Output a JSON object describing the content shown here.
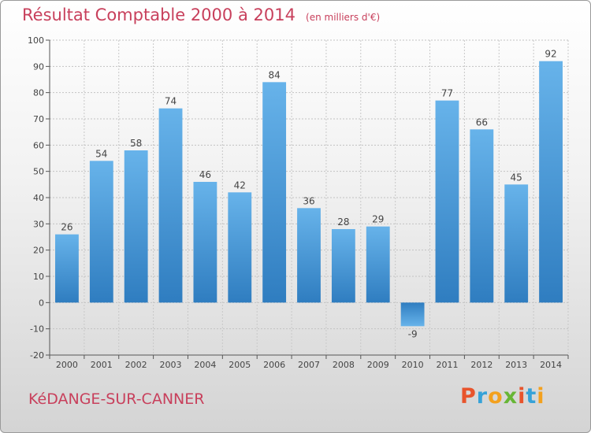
{
  "title": "Résultat Comptable 2000 à 2014",
  "subtitle": "(en milliers d'€)",
  "commune": "KéDANGE-SUR-CANNER",
  "logo": {
    "letters": [
      "P",
      "r",
      "o",
      "x",
      "i",
      "t",
      "i"
    ],
    "colors": [
      "#e8542c",
      "#36a2d8",
      "#f3a11e",
      "#67b635",
      "#e8542c",
      "#36a2d8",
      "#f3a11e"
    ]
  },
  "colors": {
    "bar": "#3f8fd0",
    "bar_light": "#67b3ea",
    "text": "#444444",
    "grid": "#bdbdbd",
    "accent": "#c8405c"
  },
  "chart_data": {
    "type": "bar",
    "title": "Résultat Comptable 2000 à 2014",
    "xlabel": "",
    "ylabel": "",
    "ylim": [
      -20,
      100
    ],
    "yticks": [
      -20,
      -10,
      0,
      10,
      20,
      30,
      40,
      50,
      60,
      70,
      80,
      90,
      100
    ],
    "grid": true,
    "categories": [
      "2000",
      "2001",
      "2002",
      "2003",
      "2004",
      "2005",
      "2006",
      "2007",
      "2008",
      "2009",
      "2010",
      "2011",
      "2012",
      "2013",
      "2014"
    ],
    "values": [
      26,
      54,
      58,
      74,
      46,
      42,
      84,
      36,
      28,
      29,
      -9,
      77,
      66,
      45,
      92
    ]
  }
}
